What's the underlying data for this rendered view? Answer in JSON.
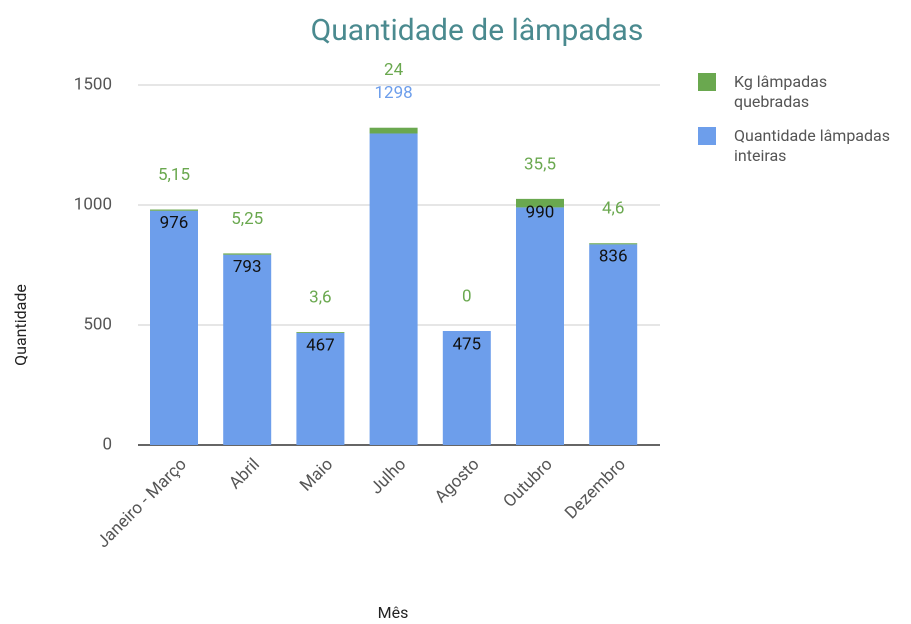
{
  "chart_data": {
    "type": "bar",
    "stacked": true,
    "title": "Quantidade de lâmpadas",
    "x_label": "Mês",
    "y_label": "Quantidade",
    "categories": [
      "Janeiro - Março",
      "Abril",
      "Maio",
      "Julho",
      "Agosto",
      "Outubro",
      "Dezembro"
    ],
    "series": [
      {
        "name": "Kg lâmpadas quebradas",
        "color": "#6aa84f",
        "values": [
          5.15,
          5.25,
          3.6,
          24,
          0,
          35.5,
          4.6
        ],
        "value_labels": [
          "5,15",
          "5,25",
          "3,6",
          "24",
          "0",
          "35,5",
          "4,6"
        ]
      },
      {
        "name": "Quantidade lâmpadas inteiras",
        "color": "#6d9eeb",
        "values": [
          976,
          793,
          467,
          1298,
          475,
          990,
          836
        ]
      }
    ],
    "ylim": [
      0,
      1500
    ],
    "yticks": [
      0,
      500,
      1000,
      1500
    ],
    "grid": true,
    "legend": "right"
  }
}
